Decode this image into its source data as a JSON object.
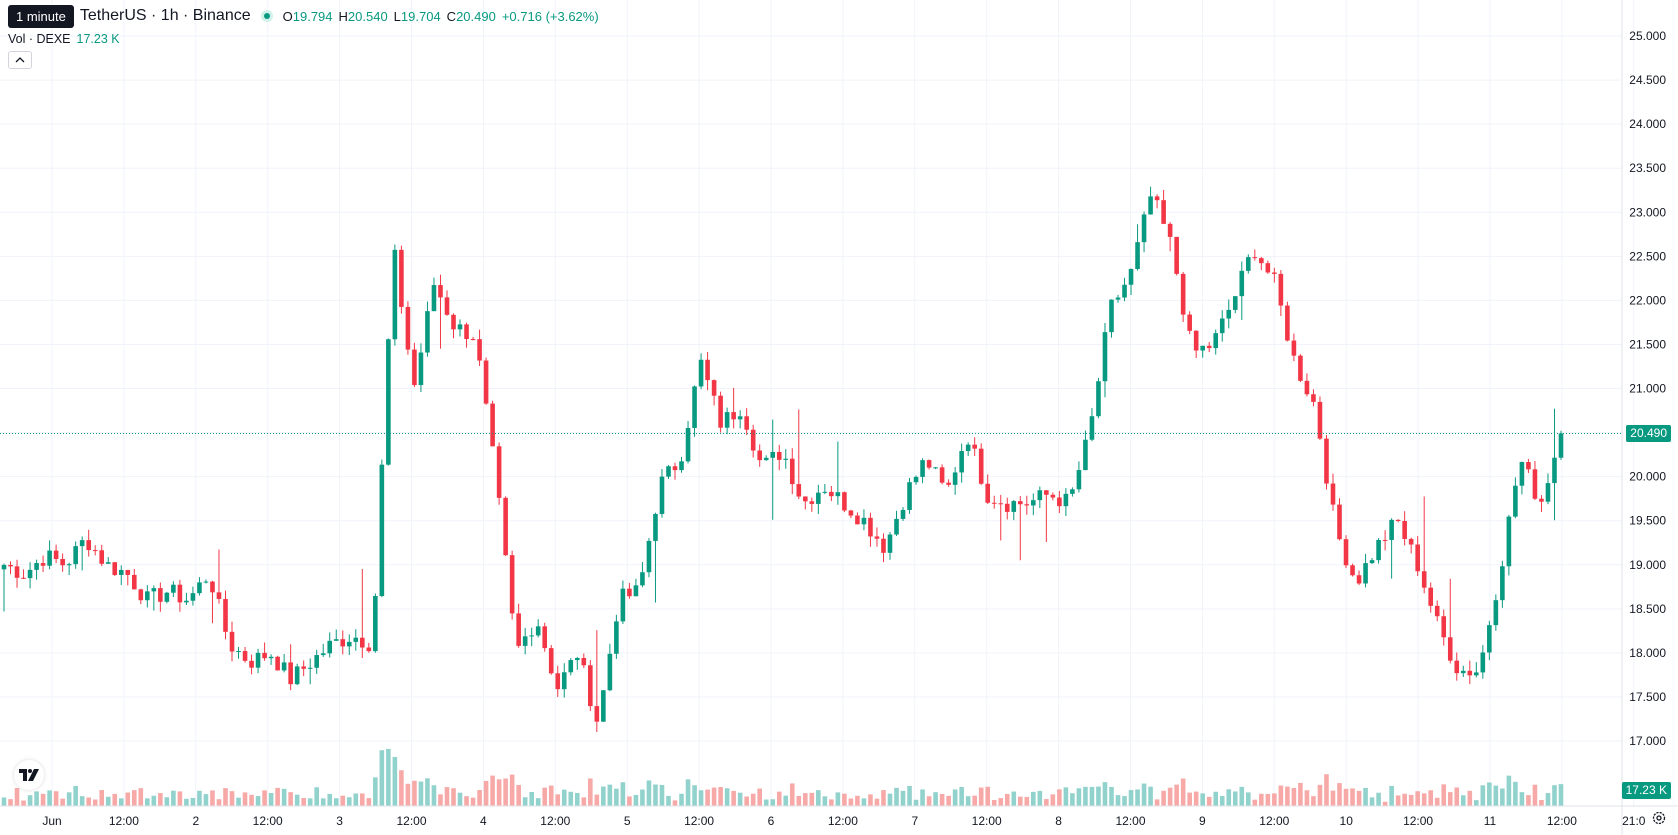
{
  "interval_tooltip": "1 minute",
  "symbol": "TetherUS · 1h · Binance",
  "ohlc": {
    "o_label": "O",
    "o": "19.794",
    "h_label": "H",
    "h": "20.540",
    "l_label": "L",
    "l": "19.704",
    "c_label": "C",
    "c": "20.490",
    "change": "+0.716 (+3.62%)"
  },
  "volume_legend": {
    "label": "Vol · DEXE",
    "value": "17.23 K"
  },
  "last_price_label": "20.490",
  "volume_badge": "17.23 K",
  "colors": {
    "up": "#089981",
    "down": "#f23645",
    "up_volume": "#92d2cc",
    "down_volume": "#f7a9a7",
    "grid": "#f0f3fa"
  },
  "icons": {
    "collapse": "chevron-up-icon",
    "logo": "tradingview-logo-icon",
    "settings": "gear-icon"
  },
  "chart_data": {
    "type": "candlestick",
    "interval": "1h",
    "y_axis": {
      "ticks": [
        17.0,
        17.5,
        18.0,
        18.5,
        19.0,
        19.5,
        20.0,
        20.5,
        21.0,
        21.5,
        22.0,
        22.5,
        23.0,
        23.5,
        24.0,
        24.5,
        25.0
      ],
      "tick_labels": [
        "17.000",
        "17.500",
        "18.000",
        "18.500",
        "19.000",
        "19.500",
        "20.000",
        "20.500",
        "21.000",
        "21.500",
        "22.000",
        "22.500",
        "23.000",
        "23.500",
        "24.000",
        "24.500",
        "25.000"
      ]
    },
    "x_axis": {
      "tick_labels": [
        "Jun",
        "12:00",
        "2",
        "12:00",
        "3",
        "12:00",
        "4",
        "12:00",
        "5",
        "12:00",
        "6",
        "12:00",
        "7",
        "12:00",
        "8",
        "12:00",
        "9",
        "12:00",
        "10",
        "12:00",
        "11",
        "12:00",
        "21:0"
      ]
    },
    "last_price": 20.49,
    "price_path": [
      19.0,
      18.9,
      19.1,
      19.0,
      19.3,
      19.0,
      18.9,
      18.6,
      18.7,
      18.6,
      18.9,
      18.1,
      17.9,
      18.0,
      17.7,
      17.9,
      18.1,
      18.2,
      18.1,
      22.6,
      21.0,
      22.2,
      21.7,
      21.6,
      20.0,
      18.0,
      18.4,
      17.6,
      18.0,
      17.2,
      18.6,
      18.7,
      19.9,
      20.2,
      21.3,
      20.6,
      20.8,
      20.1,
      20.3,
      19.7,
      19.9,
      19.7,
      19.5,
      19.2,
      19.8,
      20.2,
      19.8,
      20.5,
      19.8,
      19.7,
      19.7,
      19.8,
      19.7,
      20.5,
      21.9,
      22.3,
      23.2,
      22.6,
      21.4,
      21.5,
      22.0,
      22.6,
      22.2,
      21.3,
      20.8,
      19.4,
      18.8,
      19.2,
      19.5,
      19.0,
      18.3,
      17.8,
      17.8,
      18.9,
      20.2,
      19.7,
      20.49
    ],
    "volume_last": "17.23 K"
  }
}
